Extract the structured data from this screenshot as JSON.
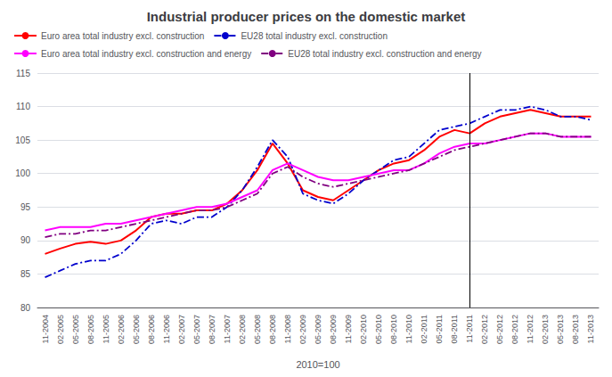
{
  "chart_data": {
    "type": "line",
    "title": "Industrial producer prices on the domestic market",
    "xlabel": "2010=100",
    "categories": [
      "11-2004",
      "02-2005",
      "05-2005",
      "08-2005",
      "11-2005",
      "02-2006",
      "05-2006",
      "08-2006",
      "11-2006",
      "02-2007",
      "05-2007",
      "08-2007",
      "11-2007",
      "02-2008",
      "05-2008",
      "08-2008",
      "11-2008",
      "02-2009",
      "05-2009",
      "08-2009",
      "11-2009",
      "02-2010",
      "05-2010",
      "08-2010",
      "11-2010",
      "02-2011",
      "05-2011",
      "08-2011",
      "11-2011",
      "02-2012",
      "05-2012",
      "08-2012",
      "11-2012",
      "02-2013",
      "05-2013",
      "08-2013",
      "11-2013"
    ],
    "series": [
      {
        "name": "Euro area total industry excl. construction",
        "color": "#ff0000",
        "line_style": "solid",
        "values": [
          88.0,
          88.8,
          89.5,
          89.8,
          89.5,
          90.0,
          91.5,
          93.5,
          94.0,
          94.0,
          94.5,
          94.5,
          95.5,
          97.5,
          100.5,
          104.5,
          101.5,
          97.5,
          96.5,
          96.0,
          97.5,
          99.0,
          100.5,
          101.5,
          102.0,
          103.5,
          105.5,
          106.5,
          106.0,
          107.5,
          108.5,
          109.0,
          109.5,
          109.0,
          108.5,
          108.5,
          108.5
        ]
      },
      {
        "name": "EU28 total industry excl. construction",
        "color": "#0000cd",
        "line_style": "dashdot",
        "values": [
          84.5,
          85.5,
          86.5,
          87.0,
          87.0,
          88.0,
          90.0,
          92.5,
          93.0,
          92.5,
          93.5,
          93.5,
          95.0,
          97.5,
          101.0,
          105.0,
          102.5,
          97.0,
          96.0,
          95.5,
          97.0,
          99.0,
          100.5,
          102.0,
          102.5,
          104.5,
          106.5,
          107.0,
          107.5,
          108.5,
          109.5,
          109.5,
          110.0,
          109.5,
          108.5,
          108.5,
          108.0
        ]
      },
      {
        "name": "Euro area total industry excl. construction and energy",
        "color": "#ff00ff",
        "line_style": "solid",
        "values": [
          91.5,
          92.0,
          92.0,
          92.0,
          92.5,
          92.5,
          93.0,
          93.5,
          94.0,
          94.5,
          95.0,
          95.0,
          95.5,
          96.5,
          97.5,
          100.5,
          101.5,
          100.5,
          99.5,
          99.0,
          99.0,
          99.5,
          100.0,
          100.5,
          100.5,
          101.5,
          103.0,
          104.0,
          104.5,
          104.5,
          105.0,
          105.5,
          106.0,
          106.0,
          105.5,
          105.5,
          105.5
        ]
      },
      {
        "name": "EU28 total industry excl. construction and energy",
        "color": "#800080",
        "line_style": "dashdot",
        "values": [
          90.5,
          91.0,
          91.0,
          91.5,
          91.5,
          92.0,
          92.5,
          93.0,
          93.5,
          94.0,
          94.5,
          94.5,
          95.0,
          96.0,
          97.0,
          100.0,
          101.0,
          99.5,
          98.5,
          98.0,
          98.5,
          99.0,
          99.5,
          100.0,
          100.5,
          101.5,
          102.5,
          103.5,
          104.0,
          104.5,
          105.0,
          105.5,
          106.0,
          106.0,
          105.5,
          105.5,
          105.5
        ]
      }
    ],
    "vline": "11-2011",
    "ylim": [
      80,
      115
    ],
    "yticks": [
      80,
      85,
      90,
      95,
      100,
      105,
      110,
      115
    ],
    "grid": true,
    "legend": "upper left"
  }
}
